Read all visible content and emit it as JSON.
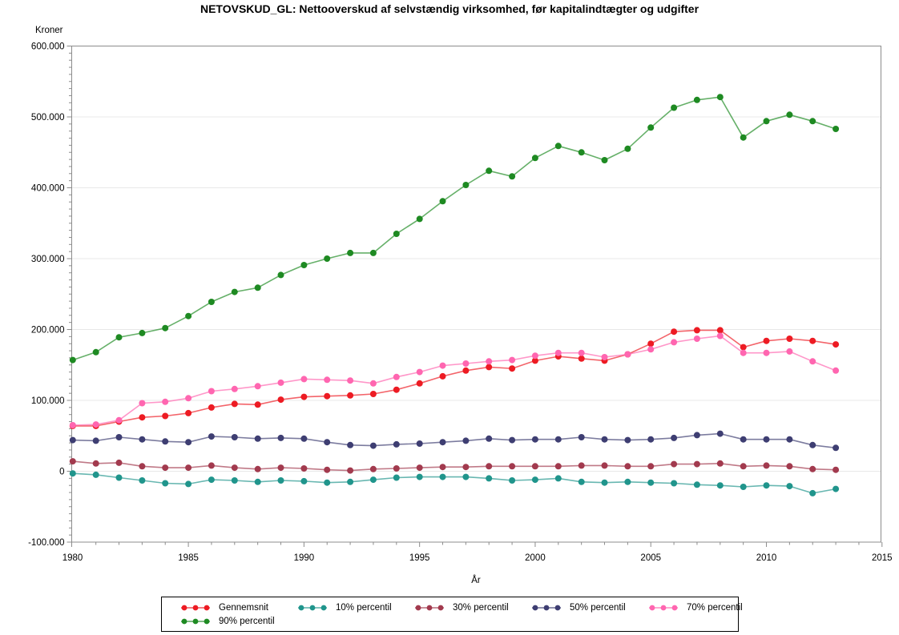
{
  "chart_data": {
    "type": "line",
    "title": "NETOVSKUD_GL: Nettooverskud af selvstændig virksomhed, før kapitalindtægter og udgifter",
    "ylabel": "Kroner",
    "xlabel": "År",
    "xlim": [
      1980,
      2015
    ],
    "ylim": [
      -100000,
      600000
    ],
    "grid": "horizontal gridlines at major y ticks",
    "legend_position": "bottom",
    "x_tick_values": [
      1980,
      1985,
      1990,
      1995,
      2000,
      2005,
      2010,
      2015
    ],
    "x_tick_labels": [
      "1980",
      "1985",
      "1990",
      "1995",
      "2000",
      "2005",
      "2010",
      "2015"
    ],
    "x_minor_tick_step_years": 1,
    "y_tick_values": [
      -100000,
      0,
      100000,
      200000,
      300000,
      400000,
      500000,
      600000
    ],
    "y_tick_labels": [
      "-100.000",
      "0",
      "100.000",
      "200.000",
      "300.000",
      "400.000",
      "500.000",
      "600.000"
    ],
    "y_minor_tick_step": 10000,
    "x": [
      1980,
      1981,
      1982,
      1983,
      1984,
      1985,
      1986,
      1987,
      1988,
      1989,
      1990,
      1991,
      1992,
      1993,
      1994,
      1995,
      1996,
      1997,
      1998,
      1999,
      2000,
      2001,
      2002,
      2003,
      2004,
      2005,
      2006,
      2007,
      2008,
      2009,
      2010,
      2011,
      2012,
      2013
    ],
    "series": [
      {
        "name": "Gennemsnit",
        "color": "#ED1B23",
        "values": [
          64000,
          64000,
          70000,
          76000,
          78000,
          82000,
          90000,
          95000,
          94000,
          101000,
          105000,
          106000,
          107000,
          109000,
          115000,
          124000,
          134000,
          142000,
          147000,
          145000,
          156000,
          162000,
          159000,
          156000,
          165000,
          180000,
          197000,
          199000,
          199000,
          175000,
          184000,
          187000,
          184000,
          179000
        ]
      },
      {
        "name": "10% percentil",
        "color": "#20958C",
        "values": [
          -3000,
          -5000,
          -9000,
          -13000,
          -17000,
          -18000,
          -12000,
          -13000,
          -15000,
          -13000,
          -14000,
          -16000,
          -15000,
          -12000,
          -9000,
          -8000,
          -8000,
          -8000,
          -10000,
          -13000,
          -12000,
          -10000,
          -15000,
          -16000,
          -15000,
          -16000,
          -17000,
          -19000,
          -20000,
          -22000,
          -20000,
          -21000,
          -31000,
          -25000
        ]
      },
      {
        "name": "30% percentil",
        "color": "#A23A4E",
        "values": [
          14000,
          11000,
          12000,
          7000,
          5000,
          5000,
          8000,
          5000,
          3000,
          5000,
          4000,
          2000,
          1000,
          3000,
          4000,
          5000,
          6000,
          6000,
          7000,
          7000,
          7000,
          7000,
          8000,
          8000,
          7000,
          7000,
          10000,
          10000,
          11000,
          7000,
          8000,
          7000,
          3000,
          2000
        ]
      },
      {
        "name": "50% percentil",
        "color": "#3E3E72",
        "values": [
          44000,
          43000,
          48000,
          45000,
          42000,
          41000,
          49000,
          48000,
          46000,
          47000,
          46000,
          41000,
          37000,
          36000,
          38000,
          39000,
          41000,
          43000,
          46000,
          44000,
          45000,
          45000,
          48000,
          45000,
          44000,
          45000,
          47000,
          51000,
          53000,
          45000,
          45000,
          45000,
          37000,
          33000
        ]
      },
      {
        "name": "70% percentil",
        "color": "#FF66B0",
        "values": [
          65000,
          66000,
          72000,
          96000,
          98000,
          103000,
          113000,
          116000,
          120000,
          125000,
          130000,
          129000,
          128000,
          124000,
          133000,
          140000,
          149000,
          152000,
          155000,
          157000,
          163000,
          167000,
          167000,
          161000,
          165000,
          172000,
          182000,
          187000,
          191000,
          167000,
          167000,
          169000,
          155000,
          142000
        ]
      },
      {
        "name": "90% percentil",
        "color": "#1E8A22",
        "values": [
          157000,
          168000,
          189000,
          195000,
          202000,
          219000,
          239000,
          253000,
          259000,
          277000,
          291000,
          300000,
          308000,
          308000,
          335000,
          356000,
          381000,
          404000,
          424000,
          416000,
          442000,
          459000,
          450000,
          439000,
          455000,
          485000,
          513000,
          524000,
          528000,
          471000,
          494000,
          503000,
          494000,
          483000
        ]
      }
    ],
    "legend_rows": [
      [
        "Gennemsnit",
        "10% percentil",
        "30% percentil",
        "50% percentil",
        "70% percentil"
      ],
      [
        "90% percentil"
      ]
    ]
  }
}
